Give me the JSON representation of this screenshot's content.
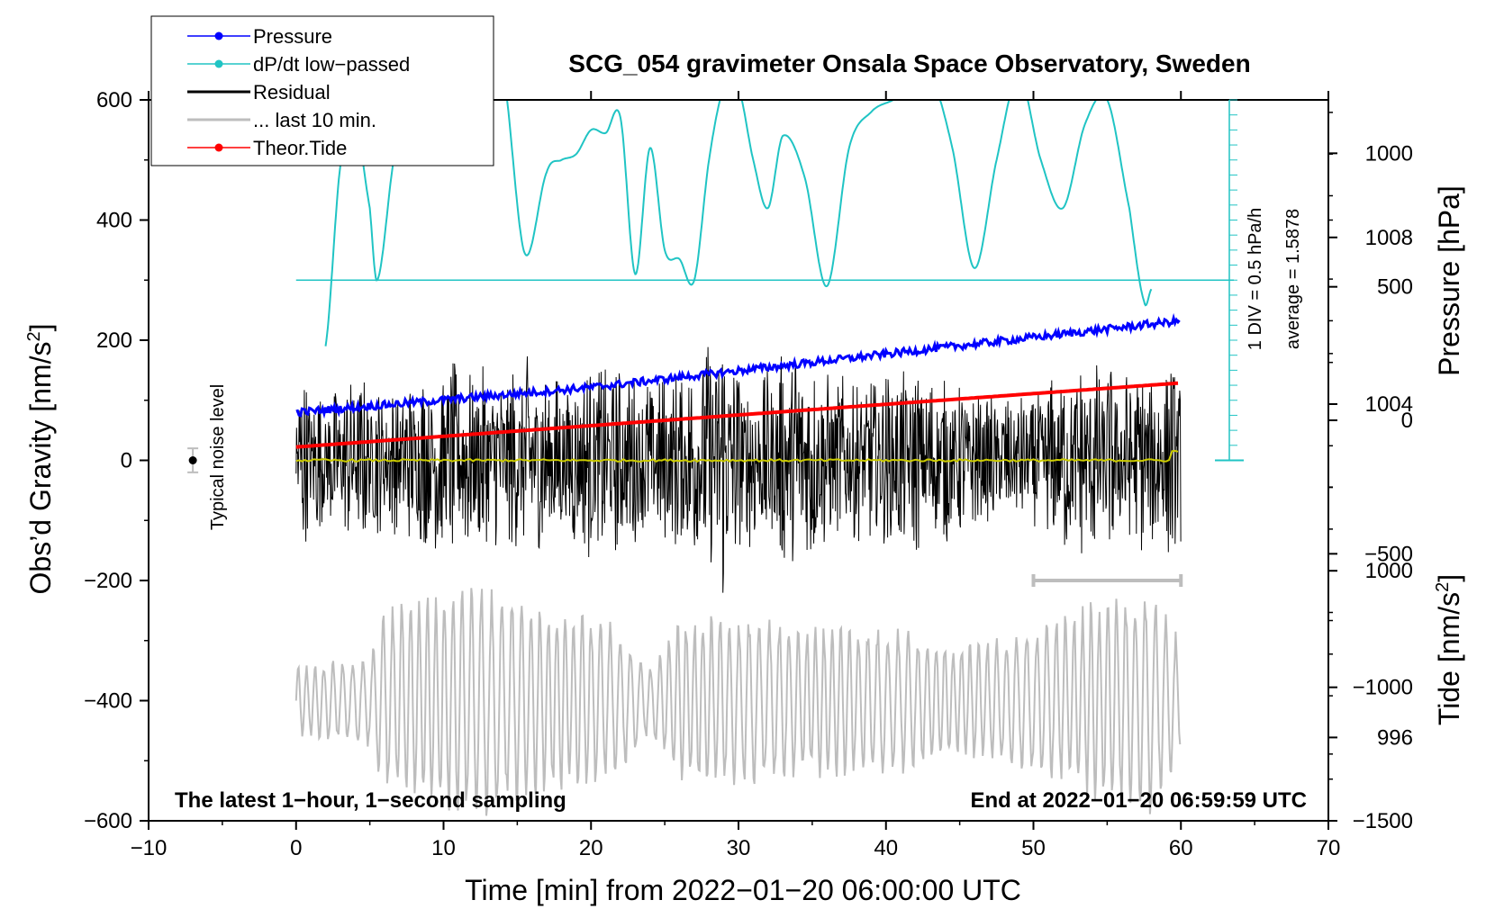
{
  "chart_data": {
    "type": "line",
    "title": "SCG_054 gravimeter Onsala Space Observatory, Sweden",
    "xlabel": "Time [min] from 2022−01−20 06:00:00 UTC",
    "ylabel_main": "Obs’d Gravity [nm/s",
    "ylabel_main_sup": "2",
    "ylabel_main_end": "]",
    "ylabel_pressure": "Pressure [hPa]",
    "ylabel_tide": "Tide [nm/s",
    "ylabel_tide_sup": "2",
    "ylabel_tide_end": "]",
    "xlim": [
      -10,
      70
    ],
    "ylim": [
      -600,
      600
    ],
    "x_ticks": [
      {
        "value": -10,
        "label": "−10"
      },
      {
        "value": 0,
        "label": "0"
      },
      {
        "value": 10,
        "label": "10"
      },
      {
        "value": 20,
        "label": "20"
      },
      {
        "value": 30,
        "label": "30"
      },
      {
        "value": 40,
        "label": "40"
      },
      {
        "value": 50,
        "label": "50"
      },
      {
        "value": 60,
        "label": "60"
      },
      {
        "value": 70,
        "label": "70"
      }
    ],
    "y_ticks": [
      {
        "value": 600,
        "label": "600"
      },
      {
        "value": 400,
        "label": "400"
      },
      {
        "value": 200,
        "label": "200"
      },
      {
        "value": 0,
        "label": "0"
      },
      {
        "value": -200,
        "label": "−200"
      },
      {
        "value": -400,
        "label": "−400"
      },
      {
        "value": -600,
        "label": "−600"
      }
    ],
    "pressure_axis": {
      "range": [
        994,
        1011.3
      ],
      "ticks": [
        {
          "value": 1008,
          "label": "1008"
        },
        {
          "value": 1004,
          "label": "1004"
        },
        {
          "value": 1000,
          "label": "1000"
        },
        {
          "value": 996,
          "label": "996"
        }
      ]
    },
    "tide_axis": {
      "range": [
        -1500,
        1200
      ],
      "ticks": [
        {
          "value": 1000,
          "label": "1000"
        },
        {
          "value": 500,
          "label": "500"
        },
        {
          "value": 0,
          "label": "0"
        },
        {
          "value": -500,
          "label": "−500"
        },
        {
          "value": -1000,
          "label": "−1000"
        },
        {
          "value": -1500,
          "label": "−1500"
        }
      ]
    },
    "series": [
      {
        "name": "Pressure",
        "color": "#0000ff",
        "axis": "pressure",
        "x": [
          0,
          10,
          20,
          30,
          40,
          50,
          60
        ],
        "values": [
          1003.8,
          1004.1,
          1004.4,
          1004.8,
          1005.2,
          1005.6,
          1006.0
        ]
      },
      {
        "name": "dP/dt low−passed",
        "color": "#20c4c4",
        "axis": "dpdt",
        "baseline_y": 300,
        "div_size_y": 25,
        "x": [
          2,
          3,
          4,
          5,
          5.5,
          6.5,
          7.5,
          8.5,
          9.5,
          11,
          12,
          13,
          14,
          15.5,
          17,
          18,
          19,
          20,
          21,
          22,
          23,
          24,
          25,
          26,
          27,
          28,
          29,
          30,
          31,
          32,
          33,
          34.5,
          36,
          37.5,
          39,
          40.5,
          41.5,
          43,
          44.5,
          46,
          47.5,
          49,
          50.5,
          52,
          53.5,
          55,
          56.5,
          57.5,
          58
        ],
        "values": [
          190,
          490,
          560,
          420,
          300,
          480,
          660,
          690,
          700,
          650,
          630,
          640,
          650,
          345,
          480,
          500,
          510,
          550,
          545,
          570,
          310,
          520,
          350,
          335,
          300,
          500,
          620,
          620,
          500,
          420,
          540,
          470,
          290,
          520,
          580,
          600,
          620,
          640,
          520,
          320,
          500,
          640,
          500,
          420,
          560,
          600,
          420,
          265,
          285
        ]
      },
      {
        "name": "Residual",
        "color": "#000000",
        "axis": "gravity",
        "envelope_x": [
          0,
          2,
          4,
          6,
          8,
          10,
          12,
          14,
          16,
          18,
          20,
          22,
          24,
          26,
          28,
          29,
          30,
          32,
          34,
          36,
          38,
          40,
          42,
          44,
          46,
          48,
          50,
          52,
          54,
          56,
          58,
          60
        ],
        "envelope_amp": [
          160,
          110,
          150,
          120,
          140,
          170,
          160,
          150,
          180,
          140,
          170,
          160,
          140,
          160,
          200,
          250,
          160,
          150,
          210,
          150,
          140,
          150,
          160,
          140,
          120,
          110,
          110,
          160,
          170,
          150,
          160,
          180
        ]
      },
      {
        "name": "... last 10 min.",
        "color": "#bdbdbd",
        "axis": "gravity",
        "center": -400,
        "envelope_x": [
          0,
          5,
          6,
          10,
          12,
          14,
          18,
          20,
          22,
          24,
          26,
          28,
          30,
          35,
          40,
          45,
          50,
          55,
          58,
          60
        ],
        "envelope_amp": [
          60,
          80,
          160,
          200,
          210,
          180,
          160,
          150,
          130,
          60,
          140,
          150,
          150,
          130,
          130,
          100,
          130,
          180,
          200,
          100
        ]
      },
      {
        "name": "Theor.Tide",
        "color": "#ff0000",
        "axis": "tide",
        "x": [
          0,
          10,
          20,
          30,
          40,
          50,
          60
        ],
        "values": [
          -100,
          -60,
          -20,
          20,
          60,
          100,
          140
        ]
      },
      {
        "name": "Mean",
        "color": "#cccc00",
        "axis": "gravity",
        "x": [
          0,
          60
        ],
        "values": [
          0,
          0
        ]
      }
    ],
    "legend": {
      "placement": "top-left",
      "entries": [
        {
          "label": "Pressure",
          "color": "#0000ff",
          "marker": true
        },
        {
          "label": "dP/dt low−passed",
          "color": "#20c4c4",
          "marker": true
        },
        {
          "label": "Residual",
          "color": "#000000",
          "marker": false
        },
        {
          "label": "... last 10 min.",
          "color": "#bdbdbd",
          "marker": false
        },
        {
          "label": "Theor.Tide",
          "color": "#ff0000",
          "marker": true
        }
      ]
    },
    "annotations": {
      "noise_label": "Typical noise level",
      "noise_value": 0,
      "noise_err": 20,
      "noise_x": -7,
      "div_label": "1 DIV = 0.5 hPa/h",
      "avg_label": "average = 1.5878",
      "bottom_left": "The latest 1−hour, 1−second sampling",
      "bottom_right": "End at 2022−01−20 06:59:59 UTC",
      "window_bar": [
        50,
        60
      ],
      "window_bar_y": -200
    }
  }
}
